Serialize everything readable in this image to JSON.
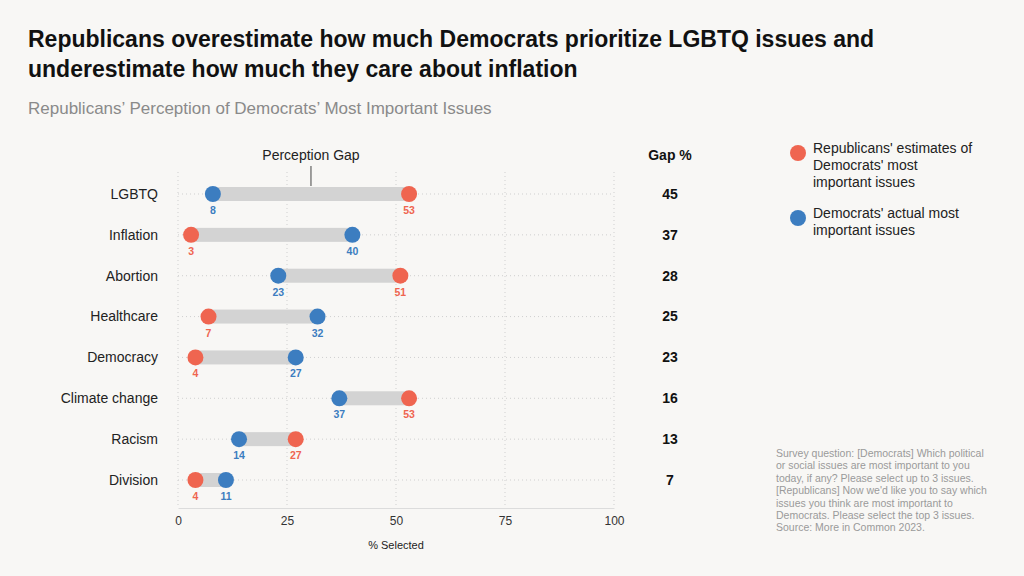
{
  "chart_data": {
    "type": "dumbbell",
    "orientation": "horizontal",
    "title": "Republicans overestimate how much Democrats prioritize LGBTQ issues and underestimate how much they care about inflation",
    "subtitle": "Republicans’ Perception of Democrats’ Most Important Issues",
    "annotation": "Perception Gap",
    "categories": [
      "LGBTQ",
      "Inflation",
      "Abortion",
      "Healthcare",
      "Democracy",
      "Climate change",
      "Racism",
      "Division"
    ],
    "series": [
      {
        "name": "Republicans' estimates of Democrats' most important issues",
        "color": "#ef6550",
        "marker": "circle",
        "values": [
          53,
          3,
          51,
          7,
          4,
          53,
          27,
          4
        ]
      },
      {
        "name": "Democrats' actual most important issues",
        "color": "#3c7dc0",
        "marker": "circle",
        "values": [
          8,
          40,
          23,
          32,
          27,
          37,
          14,
          11
        ]
      }
    ],
    "gap": {
      "label": "Gap %",
      "values": [
        45,
        37,
        28,
        25,
        23,
        16,
        13,
        7
      ]
    },
    "xlabel": "% Selected",
    "xlim": [
      0,
      100
    ],
    "xticks": [
      0,
      25,
      50,
      75,
      100
    ],
    "grid": true,
    "data_labels": true,
    "legend": "right",
    "notes": [
      "Survey question: [Democrats] Which political or social issues are most important to you today, if any? Please select up to 3 issues. [Republicans] Now we'd like you to say which issues you think are most important to Democrats. Please select the top 3 issues.",
      "Source: More in Common 2023."
    ]
  }
}
